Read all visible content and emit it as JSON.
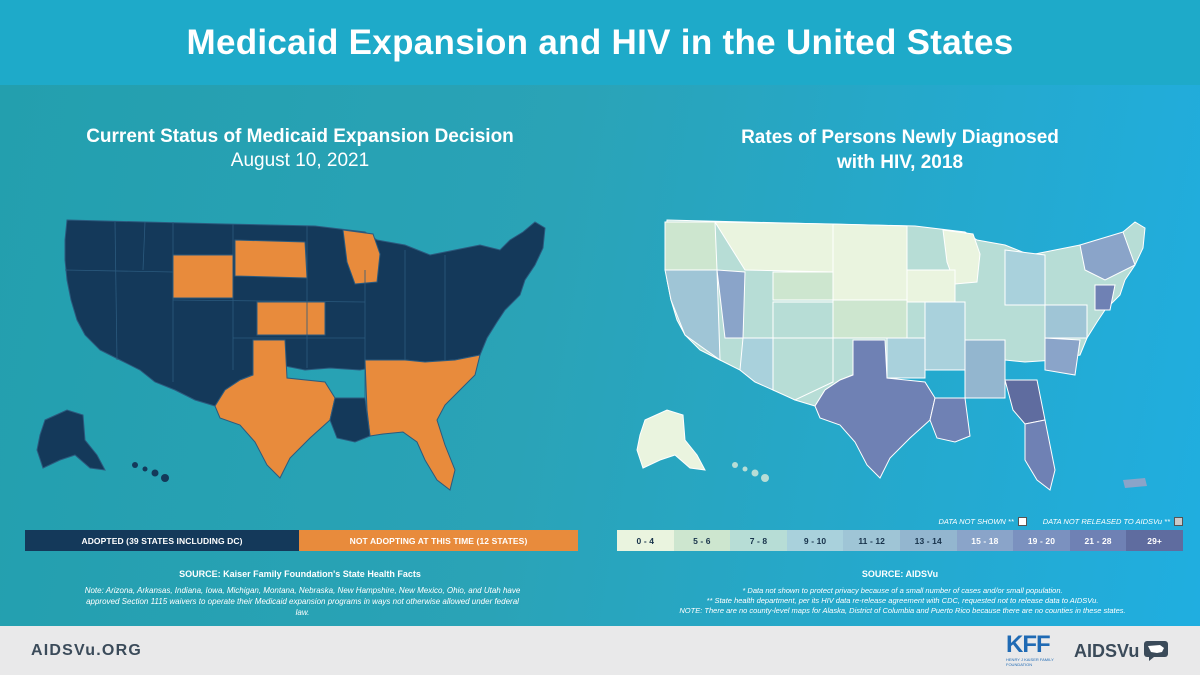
{
  "header": {
    "title": "Medicaid Expansion and HIV in the United States"
  },
  "left": {
    "title": "Current Status of Medicaid Expansion Decision",
    "date": "August 10, 2021",
    "legend": {
      "adopted": "ADOPTED (39 STATES INCLUDING DC)",
      "not_adopting": "NOT ADOPTING AT THIS TIME (12 STATES)"
    },
    "source": "SOURCE: Kaiser Family Foundation's State Health Facts",
    "note": "Note: Arizona, Arkansas, Indiana, Iowa, Michigan, Montana, Nebraska, New Hampshire, New Mexico, Ohio, and Utah have approved Section 1115 waivers to operate their Medicaid expansion programs in ways not otherwise allowed under federal law.",
    "colors": {
      "adopted": "#14395a",
      "not_adopting": "#e88b3c"
    }
  },
  "right": {
    "title_line1": "Rates of Persons Newly Diagnosed",
    "title_line2": "with HIV, 2018",
    "key_not_shown": "DATA NOT SHOWN **",
    "key_not_released": "DATA NOT RELEASED TO AIDSVu **",
    "legend": [
      {
        "label": "0 - 4",
        "color": "#eaf4df",
        "text": "#17324a"
      },
      {
        "label": "5 - 6",
        "color": "#cde6cf",
        "text": "#17324a"
      },
      {
        "label": "7 - 8",
        "color": "#b7ddd6",
        "text": "#17324a"
      },
      {
        "label": "9 - 10",
        "color": "#a9d1dc",
        "text": "#17324a"
      },
      {
        "label": "11 - 12",
        "color": "#9fc5d6",
        "text": "#17324a"
      },
      {
        "label": "13 - 14",
        "color": "#93b6cf",
        "text": "#17324a"
      },
      {
        "label": "15 - 18",
        "color": "#8aa4c9",
        "text": "#ffffff"
      },
      {
        "label": "19 - 20",
        "color": "#7b91bf",
        "text": "#ffffff"
      },
      {
        "label": "21 - 28",
        "color": "#6f81b4",
        "text": "#ffffff"
      },
      {
        "label": "29+",
        "color": "#5f6c9f",
        "text": "#ffffff"
      }
    ],
    "source": "SOURCE: AIDSVu",
    "note1": "* Data not shown to protect privacy because of a small number of cases and/or small population.",
    "note2": "** State health department, per its HIV data re-release agreement with CDC, requested not to release data to AIDSVu.",
    "note3": "NOTE: There are no county-level maps for Alaska, District of Columbia and Puerto Rico because there are no counties in these states."
  },
  "footer": {
    "url": "AIDSVu.ORG",
    "kff_logo": "KFF",
    "kff_name": "HENRY J KAISER FAMILY FOUNDATION",
    "aidsvu_logo": "AIDSVu"
  }
}
